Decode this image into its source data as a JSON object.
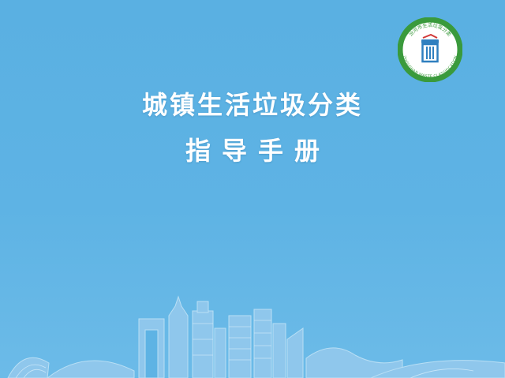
{
  "title": {
    "line1": "城镇生活垃圾分类",
    "line2": "指导手册"
  },
  "logo": {
    "top_text": "汾河市生活垃圾分类",
    "bottom_text": "ZHOUSHAN WASTE CLASSIFICATION",
    "ring_color": "#3a9a3c"
  },
  "colors": {
    "background": "#5ab0e2",
    "title": "#ffffff",
    "skyline": "#9fd0ef"
  }
}
